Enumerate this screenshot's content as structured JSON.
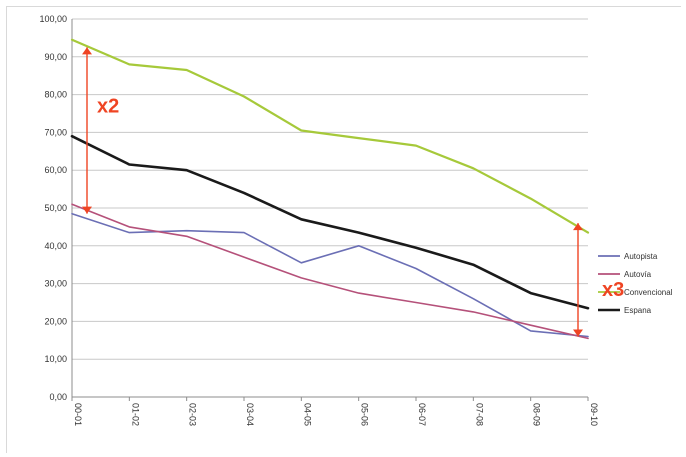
{
  "chart_data": {
    "type": "line",
    "title": "",
    "xlabel": "",
    "ylabel": "",
    "categories": [
      "00-01",
      "01-02",
      "02-03",
      "03-04",
      "04-05",
      "05-06",
      "06-07",
      "07-08",
      "08-09",
      "09-10"
    ],
    "ylim": [
      0,
      100
    ],
    "yticks": [
      "0,00",
      "10,00",
      "20,00",
      "30,00",
      "40,00",
      "50,00",
      "60,00",
      "70,00",
      "80,00",
      "90,00",
      "100,00"
    ],
    "grid": true,
    "legend_position": "right",
    "series": [
      {
        "name": "Autopista",
        "color": "#6b6fb5",
        "values": [
          48.5,
          43.5,
          44,
          43.5,
          35.5,
          40,
          34,
          26,
          17.5,
          16
        ]
      },
      {
        "name": "Autovía",
        "color": "#b5517a",
        "values": [
          51,
          45,
          42.5,
          37,
          31.5,
          27.5,
          25,
          22.5,
          19,
          15.5
        ]
      },
      {
        "name": "Convencional",
        "color": "#a6c93a",
        "values": [
          94.5,
          88,
          86.5,
          79.5,
          70.5,
          68.5,
          66.5,
          60.5,
          52.5,
          43.5
        ]
      },
      {
        "name": "Espana",
        "color": "#1a1a1a",
        "values": [
          69,
          61.5,
          60,
          54,
          47,
          43.5,
          39.5,
          35,
          27.5,
          23.5
        ]
      }
    ],
    "annotations": [
      {
        "text": "x2",
        "from": 92.5,
        "to": 48.5,
        "at": "00-01",
        "color": "#ef4423"
      },
      {
        "text": "x3",
        "from": 46,
        "to": 16,
        "at": "09-10",
        "color": "#ef4423"
      }
    ]
  }
}
